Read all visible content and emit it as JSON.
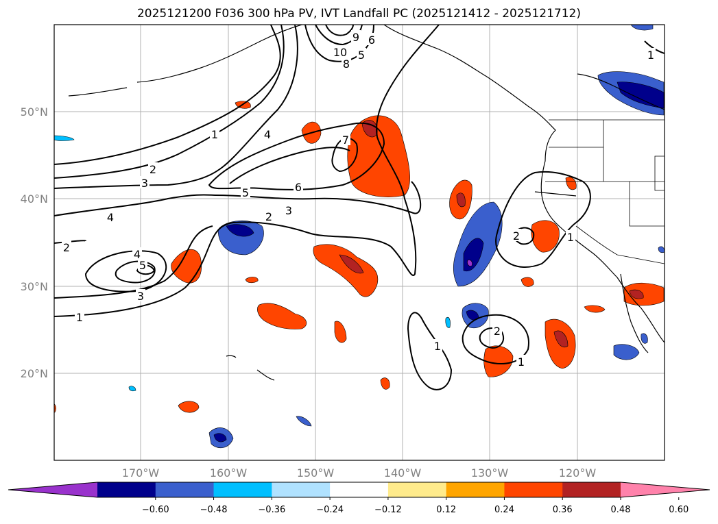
{
  "title": "2025121200 F036 300 hPa PV, IVT Landfall PC (2025121412 - 2025121712)",
  "lat_labels": [
    "50°N",
    "40°N",
    "30°N",
    "20°N"
  ],
  "lon_labels": [
    "170°W",
    "160°W",
    "150°W",
    "140°W",
    "130°W",
    "120°W"
  ],
  "colorbar": {
    "colors": [
      "#9932cc",
      "#00008b",
      "#3a5fcd",
      "#00bfff",
      "#b0e2ff",
      "#ffffff",
      "#ffeb8c",
      "#ffa500",
      "#ff4500",
      "#b22222",
      "#ff82ab"
    ],
    "tick_labels": [
      "−0.60",
      "−0.48",
      "−0.36",
      "−0.24",
      "−0.12",
      "0.12",
      "0.24",
      "0.36",
      "0.48",
      "0.60"
    ]
  },
  "contour_labels": [
    "1",
    "2",
    "3",
    "4",
    "5",
    "6",
    "7",
    "8",
    "9",
    "10",
    "4",
    "5",
    "3",
    "2",
    "1",
    "4",
    "5",
    "3",
    "2",
    "1",
    "6",
    "7",
    "1",
    "2",
    "1",
    "2",
    "1"
  ]
}
